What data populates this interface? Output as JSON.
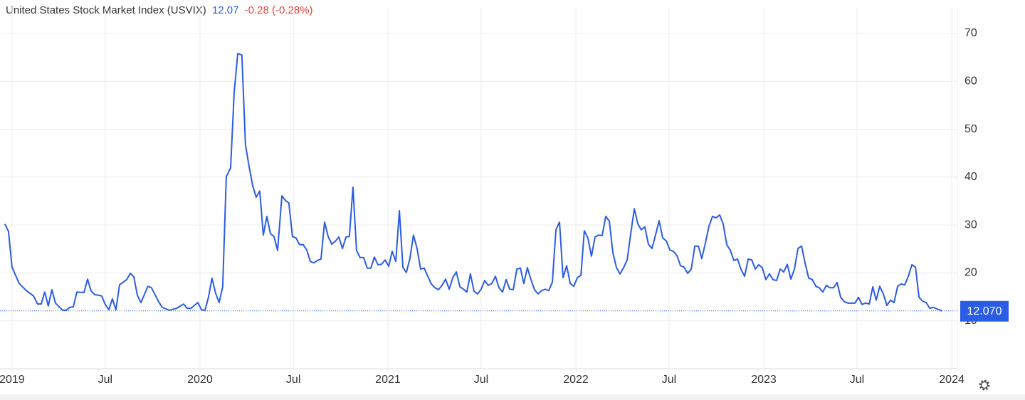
{
  "chart_data": {
    "type": "line",
    "title": "United States Stock Market Index (USVIX)",
    "price": 12.07,
    "change": "-0.28 (-0.28%)",
    "color": "#2b5ce6",
    "grid": true,
    "y_axis_side": "right",
    "xlim": [
      2018.936,
      2024.03
    ],
    "ylim": [
      0,
      75.5
    ],
    "xticks": [
      2019,
      {
        "value": 2019.496,
        "label": "Jul"
      },
      2020,
      {
        "value": 2020.497,
        "label": "Jul"
      },
      2021,
      {
        "value": 2021.496,
        "label": "Jul"
      },
      2022,
      {
        "value": 2022.496,
        "label": "Jul"
      },
      2023,
      {
        "value": 2023.496,
        "label": "Jul"
      },
      2024
    ],
    "yticks": [
      10,
      20,
      30,
      40,
      50,
      60,
      70
    ],
    "last_value": {
      "value": 12.07,
      "label": "12.070"
    },
    "x": [
      2018.962,
      2018.981,
      2019.0,
      2019.038,
      2019.076,
      2019.114,
      2019.136,
      2019.155,
      2019.174,
      2019.193,
      2019.212,
      2019.231,
      2019.269,
      2019.288,
      2019.307,
      2019.326,
      2019.345,
      2019.383,
      2019.402,
      2019.42,
      2019.439,
      2019.477,
      2019.496,
      2019.515,
      2019.534,
      2019.553,
      2019.572,
      2019.61,
      2019.629,
      2019.648,
      2019.667,
      2019.686,
      2019.723,
      2019.742,
      2019.78,
      2019.799,
      2019.837,
      2019.875,
      2019.913,
      2019.932,
      2019.951,
      2019.989,
      2020.008,
      2020.027,
      2020.045,
      2020.064,
      2020.083,
      2020.102,
      2020.121,
      2020.14,
      2020.163,
      2020.182,
      2020.201,
      2020.223,
      2020.242,
      2020.261,
      2020.28,
      2020.299,
      2020.318,
      2020.337,
      2020.356,
      2020.375,
      2020.394,
      2020.413,
      2020.436,
      2020.455,
      2020.473,
      2020.492,
      2020.511,
      2020.53,
      2020.549,
      2020.568,
      2020.587,
      2020.606,
      2020.625,
      2020.644,
      2020.663,
      2020.682,
      2020.701,
      2020.72,
      2020.739,
      2020.758,
      2020.777,
      2020.795,
      2020.814,
      2020.833,
      2020.852,
      2020.871,
      2020.89,
      2020.909,
      2020.928,
      2020.947,
      2020.966,
      2020.985,
      2021.004,
      2021.023,
      2021.042,
      2021.061,
      2021.08,
      2021.098,
      2021.117,
      2021.136,
      2021.155,
      2021.174,
      2021.193,
      2021.212,
      2021.231,
      2021.25,
      2021.269,
      2021.288,
      2021.307,
      2021.326,
      2021.345,
      2021.364,
      2021.383,
      2021.402,
      2021.42,
      2021.439,
      2021.458,
      2021.477,
      2021.496,
      2021.515,
      2021.534,
      2021.553,
      2021.572,
      2021.591,
      2021.61,
      2021.629,
      2021.648,
      2021.667,
      2021.686,
      2021.705,
      2021.723,
      2021.742,
      2021.761,
      2021.78,
      2021.799,
      2021.818,
      2021.837,
      2021.856,
      2021.875,
      2021.894,
      2021.913,
      2021.932,
      2021.951,
      2021.97,
      2021.989,
      2022.008,
      2022.027,
      2022.045,
      2022.064,
      2022.083,
      2022.102,
      2022.121,
      2022.14,
      2022.159,
      2022.178,
      2022.197,
      2022.216,
      2022.235,
      2022.254,
      2022.273,
      2022.292,
      2022.311,
      2022.33,
      2022.348,
      2022.367,
      2022.386,
      2022.405,
      2022.424,
      2022.443,
      2022.462,
      2022.481,
      2022.5,
      2022.519,
      2022.538,
      2022.557,
      2022.576,
      2022.595,
      2022.614,
      2022.633,
      2022.652,
      2022.67,
      2022.689,
      2022.708,
      2022.727,
      2022.746,
      2022.765,
      2022.784,
      2022.803,
      2022.822,
      2022.841,
      2022.86,
      2022.879,
      2022.898,
      2022.917,
      2022.936,
      2022.955,
      2022.973,
      2022.992,
      2023.011,
      2023.03,
      2023.049,
      2023.068,
      2023.087,
      2023.106,
      2023.125,
      2023.144,
      2023.163,
      2023.182,
      2023.201,
      2023.22,
      2023.239,
      2023.258,
      2023.277,
      2023.295,
      2023.314,
      2023.333,
      2023.352,
      2023.371,
      2023.39,
      2023.409,
      2023.428,
      2023.447,
      2023.466,
      2023.485,
      2023.504,
      2023.523,
      2023.542,
      2023.561,
      2023.58,
      2023.598,
      2023.617,
      2023.636,
      2023.655,
      2023.674,
      2023.693,
      2023.712,
      2023.731,
      2023.75,
      2023.769,
      2023.788,
      2023.807,
      2023.826,
      2023.845,
      2023.864,
      2023.883,
      2023.902,
      2023.92,
      2023.947
    ],
    "series": [
      {
        "values": [
          30.2,
          28.7,
          21.2,
          17.8,
          16.3,
          15.2,
          13.5,
          13.5,
          16.0,
          13.1,
          16.5,
          13.7,
          12.2,
          12.2,
          12.8,
          12.9,
          16.0,
          15.9,
          18.7,
          16.3,
          15.5,
          15.2,
          13.4,
          12.3,
          14.6,
          12.3,
          17.5,
          18.6,
          19.9,
          19.2,
          15.3,
          13.8,
          17.2,
          16.9,
          14.0,
          12.8,
          12.2,
          12.6,
          13.5,
          12.6,
          12.6,
          13.8,
          12.3,
          12.2,
          14.9,
          18.9,
          15.8,
          13.8,
          17.1,
          40.1,
          41.9,
          57.7,
          65.8,
          65.5,
          46.8,
          42.3,
          38.3,
          35.8,
          37.1,
          27.9,
          31.8,
          28.2,
          27.6,
          24.7,
          36.1,
          35.1,
          34.6,
          27.6,
          27.3,
          25.9,
          25.9,
          24.8,
          22.4,
          22.1,
          22.6,
          22.9,
          30.6,
          27.6,
          26.0,
          26.6,
          27.5,
          25.1,
          27.5,
          27.6,
          37.9,
          24.7,
          23.2,
          23.2,
          21.0,
          21.0,
          23.3,
          21.7,
          21.8,
          22.7,
          21.4,
          24.5,
          22.4,
          33.0,
          21.1,
          20.1,
          23.0,
          27.9,
          25.1,
          20.8,
          21.0,
          19.3,
          17.7,
          16.9,
          16.5,
          17.4,
          18.7,
          16.6,
          19.0,
          20.2,
          17.1,
          16.6,
          16.0,
          19.8,
          16.2,
          15.6,
          16.6,
          18.4,
          17.4,
          17.8,
          19.3,
          16.9,
          16.0,
          18.6,
          16.6,
          16.5,
          20.8,
          21.0,
          17.8,
          21.1,
          18.6,
          16.5,
          15.6,
          16.3,
          16.6,
          16.3,
          18.1,
          29.0,
          30.6,
          19.0,
          21.5,
          17.8,
          17.2,
          19.0,
          19.5,
          28.8,
          27.3,
          23.5,
          27.5,
          27.9,
          27.8,
          31.8,
          30.8,
          24.2,
          21.1,
          19.8,
          21.1,
          22.7,
          28.2,
          33.4,
          30.2,
          29.0,
          29.6,
          26.0,
          25.1,
          27.9,
          30.9,
          27.3,
          26.7,
          24.8,
          24.5,
          23.6,
          21.5,
          21.2,
          19.9,
          20.8,
          25.6,
          25.6,
          23.0,
          26.2,
          29.7,
          31.8,
          31.5,
          32.1,
          30.2,
          25.9,
          24.7,
          22.6,
          22.9,
          20.7,
          19.3,
          22.9,
          22.7,
          20.8,
          21.7,
          21.1,
          18.6,
          19.8,
          18.6,
          18.4,
          20.8,
          20.2,
          21.8,
          18.7,
          20.8,
          25.1,
          25.6,
          22.0,
          18.9,
          18.6,
          17.2,
          16.9,
          16.0,
          17.4,
          16.9,
          16.9,
          18.0,
          14.9,
          14.0,
          13.7,
          13.7,
          13.7,
          14.9,
          13.4,
          13.7,
          13.5,
          17.1,
          14.3,
          17.2,
          15.6,
          13.2,
          14.3,
          13.8,
          17.2,
          17.7,
          17.5,
          19.3,
          21.7,
          21.2,
          14.9,
          14.1,
          13.8,
          12.6,
          12.8,
          12.5,
          12.07
        ]
      }
    ]
  }
}
